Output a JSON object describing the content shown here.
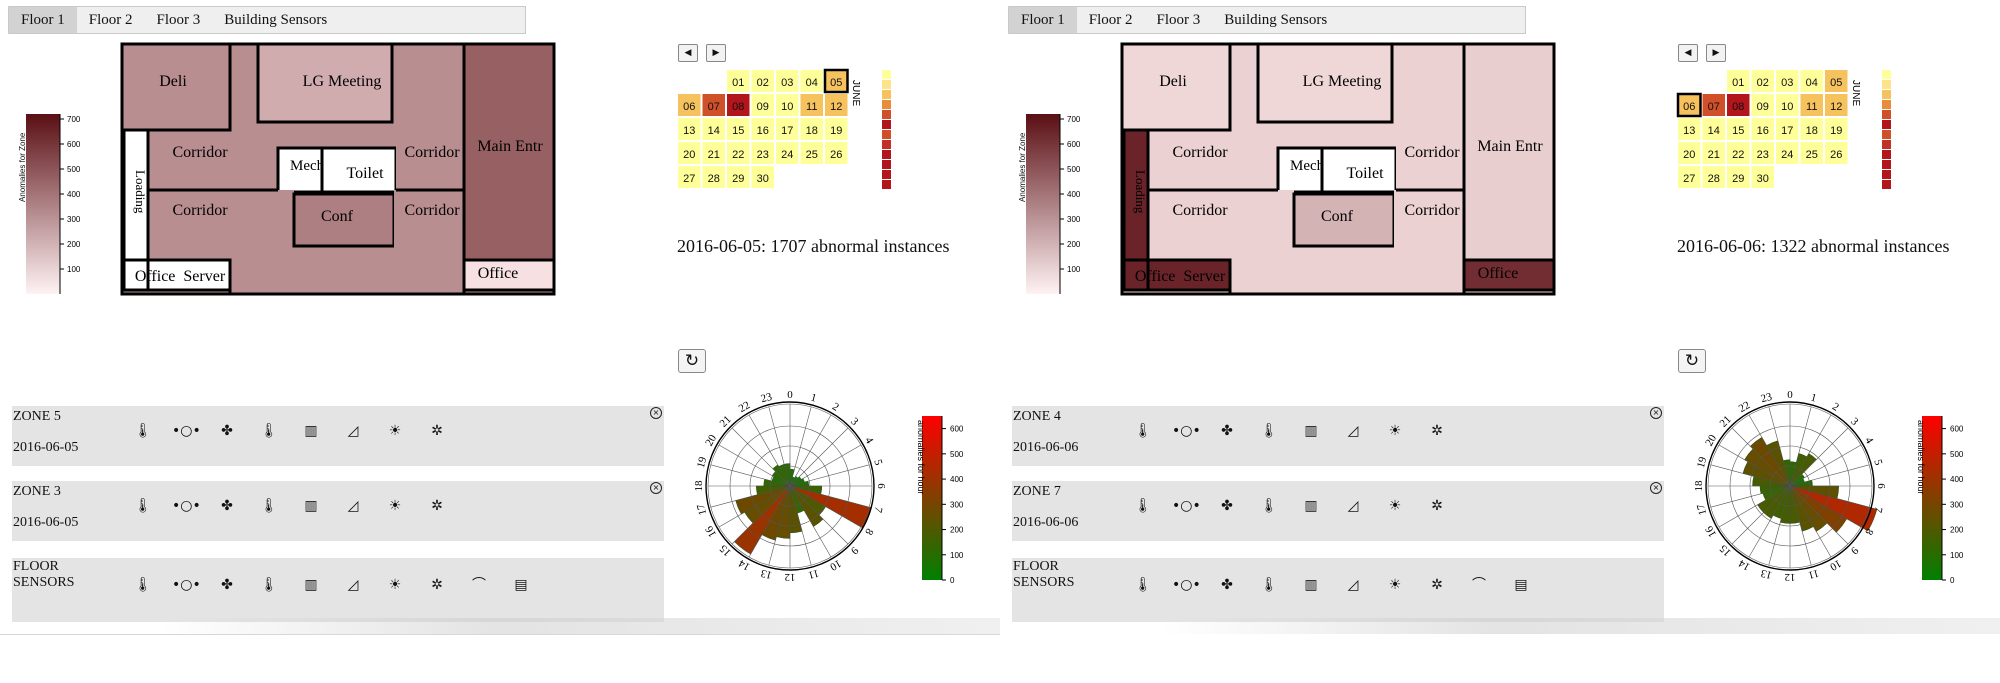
{
  "panels": [
    {
      "tabs": [
        "Floor 1",
        "Floor 2",
        "Floor 3",
        "Building Sensors"
      ],
      "active_tab": "Floor 1",
      "legend": {
        "title": "Anomalies for Zone",
        "ticks": [
          700,
          600,
          500,
          400,
          300,
          200,
          100
        ]
      },
      "rooms": {
        "deli": {
          "label": "Deli",
          "level": 300
        },
        "lg_meeting": {
          "label": "LG Meeting",
          "level": 200
        },
        "corridor_upper_left": {
          "label": "Corridor",
          "level": 300
        },
        "mech_elev": {
          "label": "Mech/ Elev",
          "level": 0
        },
        "toilet": {
          "label": "Toilet",
          "level": 0
        },
        "corridor_upper_right": {
          "label": "Corridor",
          "level": 300
        },
        "main_entr": {
          "label": "Main Entr",
          "level": 450
        },
        "loading": {
          "label": "Loading",
          "level": 0
        },
        "corridor_lower_left": {
          "label": "Corridor",
          "level": 300
        },
        "conf": {
          "label": "Conf",
          "level": 350
        },
        "corridor_lower_right": {
          "label": "Corridor",
          "level": 300
        },
        "office_server": {
          "label": "Office  Server",
          "level": 0
        },
        "office": {
          "label": "Office",
          "level": 30
        }
      },
      "calendar": {
        "month": "JUNE",
        "nav_prev": "◀",
        "nav_next": "▶",
        "days": [
          {
            "d": "01",
            "level": 0
          },
          {
            "d": "02",
            "level": 0
          },
          {
            "d": "03",
            "level": 0
          },
          {
            "d": "04",
            "level": 0
          },
          {
            "d": "05",
            "level": 2
          },
          {
            "d": "06",
            "level": 2
          },
          {
            "d": "07",
            "level": 4
          },
          {
            "d": "08",
            "level": 5
          },
          {
            "d": "09",
            "level": 0
          },
          {
            "d": "10",
            "level": 0
          },
          {
            "d": "11",
            "level": 2
          },
          {
            "d": "12",
            "level": 2
          },
          {
            "d": "13",
            "level": 0
          },
          {
            "d": "14",
            "level": 0
          },
          {
            "d": "15",
            "level": 0
          },
          {
            "d": "16",
            "level": 0
          },
          {
            "d": "17",
            "level": 0
          },
          {
            "d": "18",
            "level": 0
          },
          {
            "d": "19",
            "level": 0
          },
          {
            "d": "20",
            "level": 0
          },
          {
            "d": "21",
            "level": 0
          },
          {
            "d": "22",
            "level": 0
          },
          {
            "d": "23",
            "level": 0
          },
          {
            "d": "24",
            "level": 0
          },
          {
            "d": "25",
            "level": 0
          },
          {
            "d": "26",
            "level": 0
          },
          {
            "d": "27",
            "level": 0
          },
          {
            "d": "28",
            "level": 0
          },
          {
            "d": "29",
            "level": 0
          },
          {
            "d": "30",
            "level": 0
          }
        ],
        "selected": "05"
      },
      "abnormal_text": "2016-06-05: 1707 abnormal instances",
      "refresh_icon": "↻",
      "cards": [
        {
          "zone": "ZONE 5",
          "date": "2016-06-05",
          "icons": [
            "thermometer-icon",
            "dots-icon",
            "fans-icon",
            "thermometer-icon",
            "heater-icon",
            "damper-icon",
            "sun-thermometer-icon",
            "fan-icon"
          ]
        },
        {
          "zone": "ZONE 3",
          "date": "2016-06-05",
          "icons": [
            "thermometer-icon",
            "dots-icon",
            "fans-icon",
            "thermometer-icon",
            "heater-icon",
            "damper-icon",
            "sun-thermometer-icon",
            "fan-icon"
          ]
        },
        {
          "zone": "FLOOR SENSORS",
          "date": "",
          "icons": [
            "thermometer-icon",
            "dots-icon",
            "fans-icon",
            "thermometer-icon",
            "heater-icon",
            "damper-icon",
            "sun-thermometer-icon",
            "fan-icon",
            "shower-icon",
            "panel-icon"
          ]
        }
      ],
      "radial": {
        "hours": [
          0,
          1,
          2,
          3,
          4,
          5,
          6,
          7,
          8,
          9,
          10,
          11,
          12,
          13,
          14,
          15,
          16,
          17,
          18,
          19,
          20,
          21,
          22,
          23
        ],
        "values": [
          90,
          50,
          60,
          70,
          80,
          100,
          170,
          450,
          220,
          250,
          150,
          250,
          280,
          300,
          420,
          280,
          300,
          180,
          140,
          100,
          110,
          130,
          120,
          120
        ],
        "legend_title": "anomalies for hour",
        "legend_ticks": [
          600,
          500,
          400,
          300,
          200,
          100,
          0
        ]
      }
    },
    {
      "tabs": [
        "Floor 1",
        "Floor 2",
        "Floor 3",
        "Building Sensors"
      ],
      "active_tab": "Floor 1",
      "legend": {
        "title": "Anomalies for Zone",
        "ticks": [
          700,
          600,
          500,
          400,
          300,
          200,
          100
        ]
      },
      "rooms": {
        "deli": {
          "label": "Deli",
          "level": 60
        },
        "lg_meeting": {
          "label": "LG Meeting",
          "level": 60
        },
        "corridor_upper_left": {
          "label": "Corridor",
          "level": 80
        },
        "mech_elev": {
          "label": "Mech/ Elev",
          "level": 0
        },
        "toilet": {
          "label": "Toilet",
          "level": 0
        },
        "corridor_upper_right": {
          "label": "Corridor",
          "level": 80
        },
        "main_entr": {
          "label": "Main Entr",
          "level": 90
        },
        "loading": {
          "label": "Loading",
          "level": 650
        },
        "corridor_lower_left": {
          "label": "Corridor",
          "level": 80
        },
        "conf": {
          "label": "Conf",
          "level": 180
        },
        "corridor_lower_right": {
          "label": "Corridor",
          "level": 80
        },
        "office_server": {
          "label": "Office  Server",
          "level": 650
        },
        "office": {
          "label": "Office",
          "level": 620
        }
      },
      "calendar": {
        "month": "JUNE",
        "nav_prev": "◀",
        "nav_next": "▶",
        "days": [
          {
            "d": "01",
            "level": 0
          },
          {
            "d": "02",
            "level": 0
          },
          {
            "d": "03",
            "level": 0
          },
          {
            "d": "04",
            "level": 0
          },
          {
            "d": "05",
            "level": 2
          },
          {
            "d": "06",
            "level": 2
          },
          {
            "d": "07",
            "level": 4
          },
          {
            "d": "08",
            "level": 5
          },
          {
            "d": "09",
            "level": 0
          },
          {
            "d": "10",
            "level": 0
          },
          {
            "d": "11",
            "level": 2
          },
          {
            "d": "12",
            "level": 2
          },
          {
            "d": "13",
            "level": 0
          },
          {
            "d": "14",
            "level": 0
          },
          {
            "d": "15",
            "level": 0
          },
          {
            "d": "16",
            "level": 0
          },
          {
            "d": "17",
            "level": 0
          },
          {
            "d": "18",
            "level": 0
          },
          {
            "d": "19",
            "level": 0
          },
          {
            "d": "20",
            "level": 0
          },
          {
            "d": "21",
            "level": 0
          },
          {
            "d": "22",
            "level": 0
          },
          {
            "d": "23",
            "level": 0
          },
          {
            "d": "24",
            "level": 0
          },
          {
            "d": "25",
            "level": 0
          },
          {
            "d": "26",
            "level": 0
          },
          {
            "d": "27",
            "level": 0
          },
          {
            "d": "28",
            "level": 0
          },
          {
            "d": "29",
            "level": 0
          },
          {
            "d": "30",
            "level": 0
          }
        ],
        "selected": "06"
      },
      "abnormal_text": "2016-06-06: 1322 abnormal instances",
      "refresh_icon": "↻",
      "cards": [
        {
          "zone": "ZONE 4",
          "date": "2016-06-06",
          "icons": [
            "thermometer-icon",
            "dots-icon",
            "fans-icon",
            "thermometer-icon",
            "heater-icon",
            "damper-icon",
            "sun-thermometer-icon",
            "fan-icon"
          ]
        },
        {
          "zone": "ZONE 7",
          "date": "2016-06-06",
          "icons": [
            "thermometer-icon",
            "dots-icon",
            "fans-icon",
            "thermometer-icon",
            "heater-icon",
            "damper-icon",
            "sun-thermometer-icon",
            "fan-icon"
          ]
        },
        {
          "zone": "FLOOR SENSORS",
          "date": "",
          "icons": [
            "thermometer-icon",
            "dots-icon",
            "fans-icon",
            "thermometer-icon",
            "heater-icon",
            "damper-icon",
            "sun-thermometer-icon",
            "fan-icon",
            "shower-icon",
            "panel-icon"
          ]
        }
      ],
      "radial": {
        "hours": [
          0,
          1,
          2,
          3,
          4,
          5,
          6,
          7,
          8,
          9,
          10,
          11,
          12,
          13,
          14,
          15,
          16,
          17,
          18,
          19,
          20,
          21,
          22,
          23
        ],
        "values": [
          130,
          180,
          200,
          90,
          80,
          120,
          260,
          480,
          350,
          280,
          250,
          200,
          200,
          180,
          200,
          200,
          150,
          160,
          200,
          260,
          280,
          300,
          250,
          140
        ],
        "legend_title": "anomalies for hour",
        "legend_ticks": [
          600,
          500,
          400,
          300,
          200,
          100,
          0
        ]
      }
    }
  ],
  "colors": {
    "zone_low": "#fde9ea",
    "zone_high": "#5a0f14",
    "calendar_levels": [
      "#ffff99",
      "#fde38a",
      "#f5c25e",
      "#e88e3a",
      "#d0502a",
      "#b3151c"
    ],
    "radial_low": "#008000",
    "radial_high": "#ff0000"
  }
}
